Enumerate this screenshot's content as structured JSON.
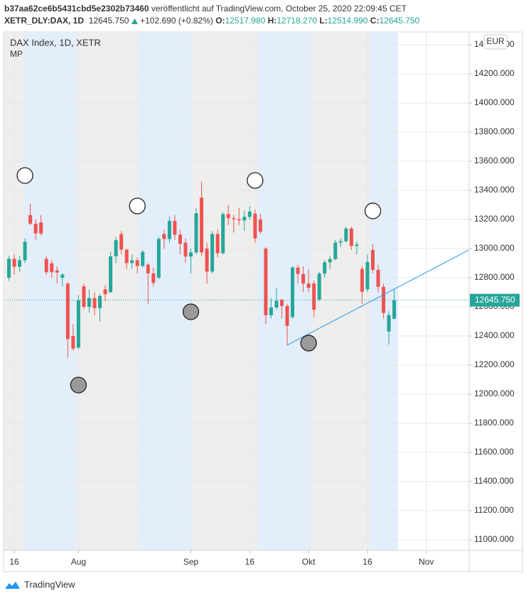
{
  "header": {
    "author": "b37aa62ce6b5431cbd5e2302b73460",
    "published": "veröffentlicht auf TradingView.com, October 25, 2020 22:09:45 CET",
    "symbol": "XETR_DLY:DAX, 1D",
    "last": "12645.750",
    "change": "+102.690 (+0.82%)",
    "ohlc": [
      {
        "label": "O:",
        "value": "12517.980"
      },
      {
        "label": "H:",
        "value": "12718.270"
      },
      {
        "label": "L:",
        "value": "12514.990"
      },
      {
        "label": "C:",
        "value": "12645.750"
      }
    ],
    "legend_title": "DAX Index, 1D, XETR",
    "indicator": "MP",
    "currency": "EUR",
    "footer": "TradingView"
  },
  "chart_data": {
    "type": "candlestick",
    "x": [
      "2020-07-15",
      "2020-07-16",
      "2020-07-17",
      "2020-07-20",
      "2020-07-21",
      "2020-07-22",
      "2020-07-23",
      "2020-07-24",
      "2020-07-27",
      "2020-07-28",
      "2020-07-29",
      "2020-07-30",
      "2020-07-31",
      "2020-08-03",
      "2020-08-04",
      "2020-08-05",
      "2020-08-06",
      "2020-08-07",
      "2020-08-10",
      "2020-08-11",
      "2020-08-12",
      "2020-08-13",
      "2020-08-14",
      "2020-08-17",
      "2020-08-18",
      "2020-08-19",
      "2020-08-20",
      "2020-08-21",
      "2020-08-24",
      "2020-08-25",
      "2020-08-26",
      "2020-08-27",
      "2020-08-28",
      "2020-08-31",
      "2020-09-01",
      "2020-09-02",
      "2020-09-03",
      "2020-09-04",
      "2020-09-07",
      "2020-09-08",
      "2020-09-09",
      "2020-09-10",
      "2020-09-11",
      "2020-09-14",
      "2020-09-15",
      "2020-09-16",
      "2020-09-17",
      "2020-09-18",
      "2020-09-21",
      "2020-09-22",
      "2020-09-23",
      "2020-09-24",
      "2020-09-25",
      "2020-09-28",
      "2020-09-29",
      "2020-09-30",
      "2020-10-01",
      "2020-10-02",
      "2020-10-05",
      "2020-10-06",
      "2020-10-07",
      "2020-10-08",
      "2020-10-09",
      "2020-10-12",
      "2020-10-13",
      "2020-10-14",
      "2020-10-15",
      "2020-10-16",
      "2020-10-19",
      "2020-10-20",
      "2020-10-21",
      "2020-10-22",
      "2020-10-23"
    ],
    "open": [
      12800,
      12930,
      12875,
      12920,
      13230,
      13171,
      13180,
      12930,
      12900,
      12850,
      12800,
      12760,
      12400,
      12320,
      12740,
      12600,
      12660,
      12591,
      12720,
      12700,
      12947,
      13100,
      12993,
      12901,
      12920,
      12881,
      12890,
      12830,
      12800,
      13100,
      13066,
      13190,
      13096,
      13040,
      12945,
      12974,
      13350,
      13000,
      12842,
      13100,
      12968,
      13237,
      13209,
      13202,
      13194,
      13218,
      13240,
      13200,
      13000,
      12542,
      12595,
      12650,
      12606,
      12530,
      12870,
      12826,
      12760,
      12760,
      12650,
      12828,
      12906,
      12928,
      13042,
      13051,
      13138,
      13018,
      12860,
      12720,
      12990,
      12854,
      12737,
      12430,
      12517.98
    ],
    "high": [
      12950,
      12960,
      12950,
      13070,
      13310,
      13200,
      13230,
      12950,
      12920,
      12880,
      12830,
      12770,
      12480,
      12680,
      12760,
      12720,
      12700,
      12690,
      12750,
      12980,
      13080,
      13120,
      13000,
      12960,
      12940,
      12990,
      12900,
      12870,
      13080,
      13130,
      13220,
      13230,
      13130,
      13070,
      13000,
      13280,
      13460,
      13040,
      13120,
      13130,
      13250,
      13300,
      13230,
      13280,
      13260,
      13290,
      13270,
      13240,
      13010,
      12660,
      12730,
      12640,
      12620,
      12880,
      12890,
      12880,
      12860,
      12780,
      12840,
      12920,
      12950,
      13060,
      13070,
      13150,
      13150,
      13050,
      12880,
      12960,
      13030,
      12890,
      12760,
      12570,
      12718.27
    ],
    "low": [
      12780,
      12820,
      12840,
      12900,
      13160,
      13060,
      13090,
      12820,
      12800,
      12760,
      12740,
      12250,
      12300,
      12310,
      12580,
      12560,
      12540,
      12500,
      12640,
      12700,
      12900,
      12960,
      12860,
      12860,
      12830,
      12870,
      12620,
      12740,
      12790,
      13000,
      13040,
      13060,
      12960,
      12900,
      12830,
      12960,
      12950,
      12760,
      12830,
      12940,
      12960,
      13160,
      13110,
      13160,
      13120,
      13200,
      13040,
      13100,
      12480,
      12520,
      12580,
      12520,
      12340,
      12520,
      12760,
      12700,
      12700,
      12530,
      12640,
      12800,
      12860,
      12920,
      13010,
      13040,
      12990,
      12960,
      12620,
      12700,
      12830,
      12700,
      12520,
      12340,
      12514.99
    ],
    "close": [
      12930,
      12875,
      12920,
      13047,
      13171,
      13104,
      13103,
      12838,
      12838,
      12836,
      12822,
      12379,
      12313,
      12646,
      12600,
      12660,
      12591,
      12674,
      12687,
      12947,
      13058,
      12993,
      12901,
      12920,
      12881,
      12977,
      12830,
      12765,
      13067,
      13066,
      13190,
      13096,
      13033,
      12945,
      12974,
      13243,
      12974,
      12842,
      13100,
      12968,
      13237,
      13209,
      13202,
      13194,
      13218,
      13255,
      13070,
      13116,
      12542,
      12595,
      12642,
      12606,
      12469,
      12870,
      12826,
      12760,
      12731,
      12580,
      12828,
      12906,
      12928,
      13042,
      13051,
      13138,
      13018,
      13028,
      12704,
      12908,
      12854,
      12737,
      12558,
      12543,
      12645.75
    ],
    "up_color": "#26a69a",
    "down_color": "#ef5350",
    "xlim": [
      "2020-07-14",
      "2020-11-12"
    ],
    "xticks": [
      {
        "value": "2020-07-16",
        "label": "16"
      },
      {
        "value": "2020-08-03",
        "label": "Aug"
      },
      {
        "value": "2020-09-01",
        "label": "Sep"
      },
      {
        "value": "2020-09-16",
        "label": "16"
      },
      {
        "value": "2020-10-01",
        "label": "Okt"
      },
      {
        "value": "2020-10-16",
        "label": "16"
      },
      {
        "value": "2020-11-02",
        "label": "Nov"
      }
    ],
    "ylim": [
      10927,
      14488
    ],
    "yticks": [
      {
        "value": 11000,
        "label": "11000.000"
      },
      {
        "value": 11200,
        "label": "11200.000"
      },
      {
        "value": 11400,
        "label": "11400.000"
      },
      {
        "value": 11600,
        "label": "11600.000"
      },
      {
        "value": 11800,
        "label": "11800.000"
      },
      {
        "value": 12000,
        "label": "12000.000"
      },
      {
        "value": 12200,
        "label": "12200.000"
      },
      {
        "value": 12400,
        "label": "12400.000"
      },
      {
        "value": 12600,
        "label": "12600.000"
      },
      {
        "value": 12800,
        "label": "12800.000"
      },
      {
        "value": 13000,
        "label": "13000.000"
      },
      {
        "value": 13200,
        "label": "13200.000"
      },
      {
        "value": 13400,
        "label": "13400.000"
      },
      {
        "value": 13600,
        "label": "13600.000"
      },
      {
        "value": 13800,
        "label": "13800.000"
      },
      {
        "value": 14000,
        "label": "14000.000"
      },
      {
        "value": 14200,
        "label": "14200.000"
      },
      {
        "value": 14400,
        "label": "14400.000"
      }
    ],
    "grid": true,
    "last_price": {
      "value": 12645.75,
      "label": "12645.750"
    },
    "markers": [
      {
        "x": "2020-07-20",
        "y": 13502,
        "color": "#ffffff"
      },
      {
        "x": "2020-08-18",
        "y": 13293,
        "color": "#ffffff"
      },
      {
        "x": "2020-09-17",
        "y": 13468,
        "color": "#ffffff"
      },
      {
        "x": "2020-10-19",
        "y": 13259,
        "color": "#ffffff"
      },
      {
        "x": "2020-08-03",
        "y": 12063,
        "color": "#9a9a9a"
      },
      {
        "x": "2020-09-01",
        "y": 12566,
        "color": "#9a9a9a"
      },
      {
        "x": "2020-10-01",
        "y": 12351,
        "color": "#9a9a9a"
      }
    ],
    "trendline": {
      "x": [
        "2020-09-25",
        "2020-10-23"
      ],
      "y": [
        12337,
        12722
      ],
      "color": "#2196f3",
      "extend": true
    }
  }
}
